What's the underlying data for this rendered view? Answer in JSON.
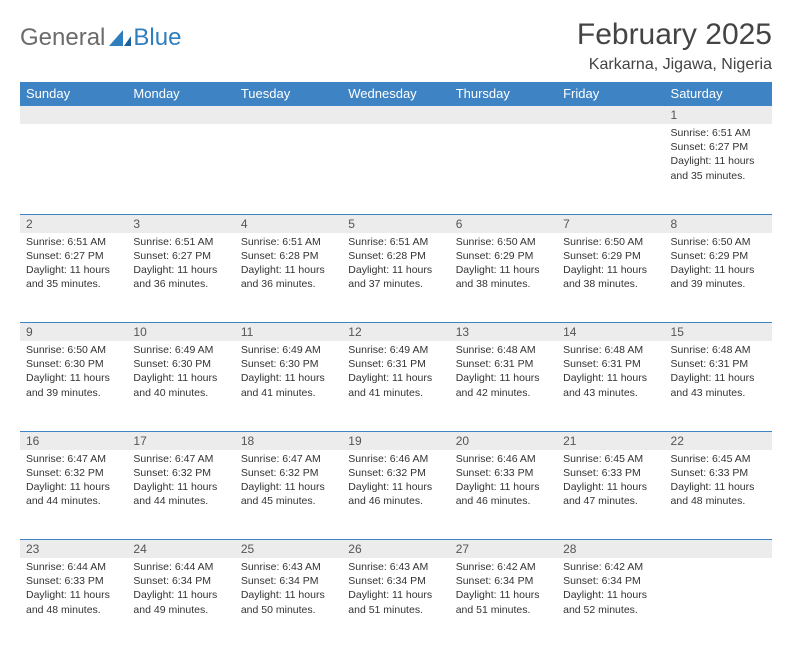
{
  "logo": {
    "text1": "General",
    "text2": "Blue"
  },
  "title": "February 2025",
  "location": "Karkarna, Jigawa, Nigeria",
  "colors": {
    "header_bg": "#3e83c3",
    "header_text": "#ffffff",
    "daynum_bg": "#ececec",
    "border": "#3e83c3",
    "logo_gray": "#6b6b6b",
    "logo_blue": "#2f7fbf"
  },
  "fonts": {
    "title_size": 30,
    "location_size": 16,
    "dayheader_size": 13,
    "daynum_size": 12,
    "body_size": 10.5
  },
  "day_headers": [
    "Sunday",
    "Monday",
    "Tuesday",
    "Wednesday",
    "Thursday",
    "Friday",
    "Saturday"
  ],
  "weeks": [
    [
      {
        "n": "",
        "sr": "",
        "ss": "",
        "dl": ""
      },
      {
        "n": "",
        "sr": "",
        "ss": "",
        "dl": ""
      },
      {
        "n": "",
        "sr": "",
        "ss": "",
        "dl": ""
      },
      {
        "n": "",
        "sr": "",
        "ss": "",
        "dl": ""
      },
      {
        "n": "",
        "sr": "",
        "ss": "",
        "dl": ""
      },
      {
        "n": "",
        "sr": "",
        "ss": "",
        "dl": ""
      },
      {
        "n": "1",
        "sr": "Sunrise: 6:51 AM",
        "ss": "Sunset: 6:27 PM",
        "dl": "Daylight: 11 hours and 35 minutes."
      }
    ],
    [
      {
        "n": "2",
        "sr": "Sunrise: 6:51 AM",
        "ss": "Sunset: 6:27 PM",
        "dl": "Daylight: 11 hours and 35 minutes."
      },
      {
        "n": "3",
        "sr": "Sunrise: 6:51 AM",
        "ss": "Sunset: 6:27 PM",
        "dl": "Daylight: 11 hours and 36 minutes."
      },
      {
        "n": "4",
        "sr": "Sunrise: 6:51 AM",
        "ss": "Sunset: 6:28 PM",
        "dl": "Daylight: 11 hours and 36 minutes."
      },
      {
        "n": "5",
        "sr": "Sunrise: 6:51 AM",
        "ss": "Sunset: 6:28 PM",
        "dl": "Daylight: 11 hours and 37 minutes."
      },
      {
        "n": "6",
        "sr": "Sunrise: 6:50 AM",
        "ss": "Sunset: 6:29 PM",
        "dl": "Daylight: 11 hours and 38 minutes."
      },
      {
        "n": "7",
        "sr": "Sunrise: 6:50 AM",
        "ss": "Sunset: 6:29 PM",
        "dl": "Daylight: 11 hours and 38 minutes."
      },
      {
        "n": "8",
        "sr": "Sunrise: 6:50 AM",
        "ss": "Sunset: 6:29 PM",
        "dl": "Daylight: 11 hours and 39 minutes."
      }
    ],
    [
      {
        "n": "9",
        "sr": "Sunrise: 6:50 AM",
        "ss": "Sunset: 6:30 PM",
        "dl": "Daylight: 11 hours and 39 minutes."
      },
      {
        "n": "10",
        "sr": "Sunrise: 6:49 AM",
        "ss": "Sunset: 6:30 PM",
        "dl": "Daylight: 11 hours and 40 minutes."
      },
      {
        "n": "11",
        "sr": "Sunrise: 6:49 AM",
        "ss": "Sunset: 6:30 PM",
        "dl": "Daylight: 11 hours and 41 minutes."
      },
      {
        "n": "12",
        "sr": "Sunrise: 6:49 AM",
        "ss": "Sunset: 6:31 PM",
        "dl": "Daylight: 11 hours and 41 minutes."
      },
      {
        "n": "13",
        "sr": "Sunrise: 6:48 AM",
        "ss": "Sunset: 6:31 PM",
        "dl": "Daylight: 11 hours and 42 minutes."
      },
      {
        "n": "14",
        "sr": "Sunrise: 6:48 AM",
        "ss": "Sunset: 6:31 PM",
        "dl": "Daylight: 11 hours and 43 minutes."
      },
      {
        "n": "15",
        "sr": "Sunrise: 6:48 AM",
        "ss": "Sunset: 6:31 PM",
        "dl": "Daylight: 11 hours and 43 minutes."
      }
    ],
    [
      {
        "n": "16",
        "sr": "Sunrise: 6:47 AM",
        "ss": "Sunset: 6:32 PM",
        "dl": "Daylight: 11 hours and 44 minutes."
      },
      {
        "n": "17",
        "sr": "Sunrise: 6:47 AM",
        "ss": "Sunset: 6:32 PM",
        "dl": "Daylight: 11 hours and 44 minutes."
      },
      {
        "n": "18",
        "sr": "Sunrise: 6:47 AM",
        "ss": "Sunset: 6:32 PM",
        "dl": "Daylight: 11 hours and 45 minutes."
      },
      {
        "n": "19",
        "sr": "Sunrise: 6:46 AM",
        "ss": "Sunset: 6:32 PM",
        "dl": "Daylight: 11 hours and 46 minutes."
      },
      {
        "n": "20",
        "sr": "Sunrise: 6:46 AM",
        "ss": "Sunset: 6:33 PM",
        "dl": "Daylight: 11 hours and 46 minutes."
      },
      {
        "n": "21",
        "sr": "Sunrise: 6:45 AM",
        "ss": "Sunset: 6:33 PM",
        "dl": "Daylight: 11 hours and 47 minutes."
      },
      {
        "n": "22",
        "sr": "Sunrise: 6:45 AM",
        "ss": "Sunset: 6:33 PM",
        "dl": "Daylight: 11 hours and 48 minutes."
      }
    ],
    [
      {
        "n": "23",
        "sr": "Sunrise: 6:44 AM",
        "ss": "Sunset: 6:33 PM",
        "dl": "Daylight: 11 hours and 48 minutes."
      },
      {
        "n": "24",
        "sr": "Sunrise: 6:44 AM",
        "ss": "Sunset: 6:34 PM",
        "dl": "Daylight: 11 hours and 49 minutes."
      },
      {
        "n": "25",
        "sr": "Sunrise: 6:43 AM",
        "ss": "Sunset: 6:34 PM",
        "dl": "Daylight: 11 hours and 50 minutes."
      },
      {
        "n": "26",
        "sr": "Sunrise: 6:43 AM",
        "ss": "Sunset: 6:34 PM",
        "dl": "Daylight: 11 hours and 51 minutes."
      },
      {
        "n": "27",
        "sr": "Sunrise: 6:42 AM",
        "ss": "Sunset: 6:34 PM",
        "dl": "Daylight: 11 hours and 51 minutes."
      },
      {
        "n": "28",
        "sr": "Sunrise: 6:42 AM",
        "ss": "Sunset: 6:34 PM",
        "dl": "Daylight: 11 hours and 52 minutes."
      },
      {
        "n": "",
        "sr": "",
        "ss": "",
        "dl": ""
      }
    ]
  ]
}
